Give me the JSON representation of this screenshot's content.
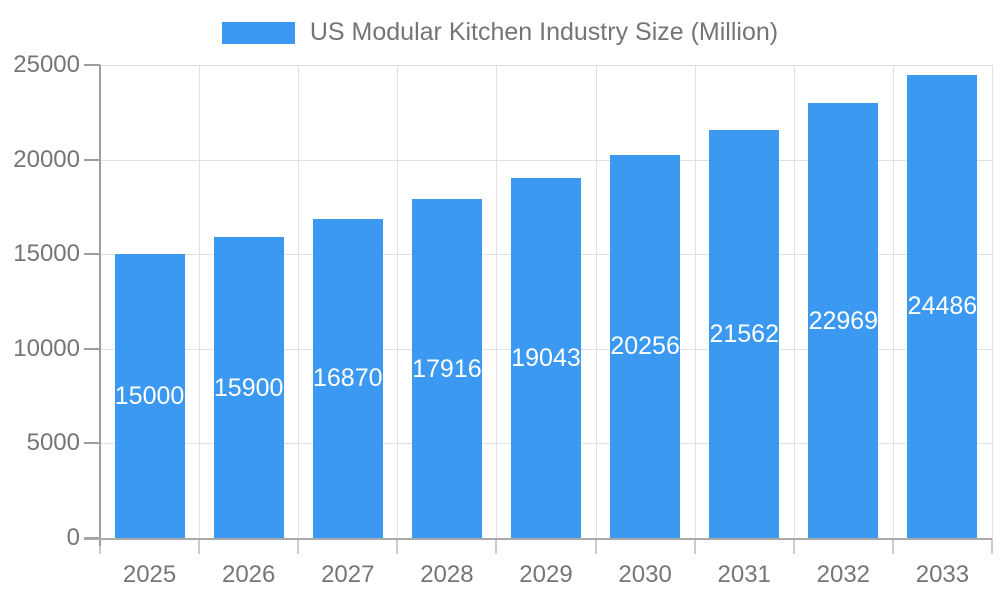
{
  "chart_data": {
    "type": "bar",
    "title": "US Modular Kitchen Industry Size (Million)",
    "legend_position": "top",
    "categories": [
      "2025",
      "2026",
      "2027",
      "2028",
      "2029",
      "2030",
      "2031",
      "2032",
      "2033"
    ],
    "series": [
      {
        "name": "US Modular Kitchen Industry Size (Million)",
        "values": [
          15000,
          15900,
          16870,
          17916,
          19043,
          20256,
          21562,
          22969,
          24486
        ]
      }
    ],
    "value_labels_shown": true,
    "xlabel": "",
    "ylabel": "",
    "ylim": [
      0,
      25000
    ],
    "yticks": [
      0,
      5000,
      10000,
      15000,
      20000,
      25000
    ],
    "grid": true,
    "colors": {
      "bar": "#3b99f1",
      "value_label": "#ffffff",
      "axis_text": "#757575",
      "gridline": "#e0e0e0",
      "axis_line": "#9e9e9e",
      "baseline": "#a9a9a9",
      "tick": "#cccccc",
      "background": "#ffffff"
    }
  }
}
